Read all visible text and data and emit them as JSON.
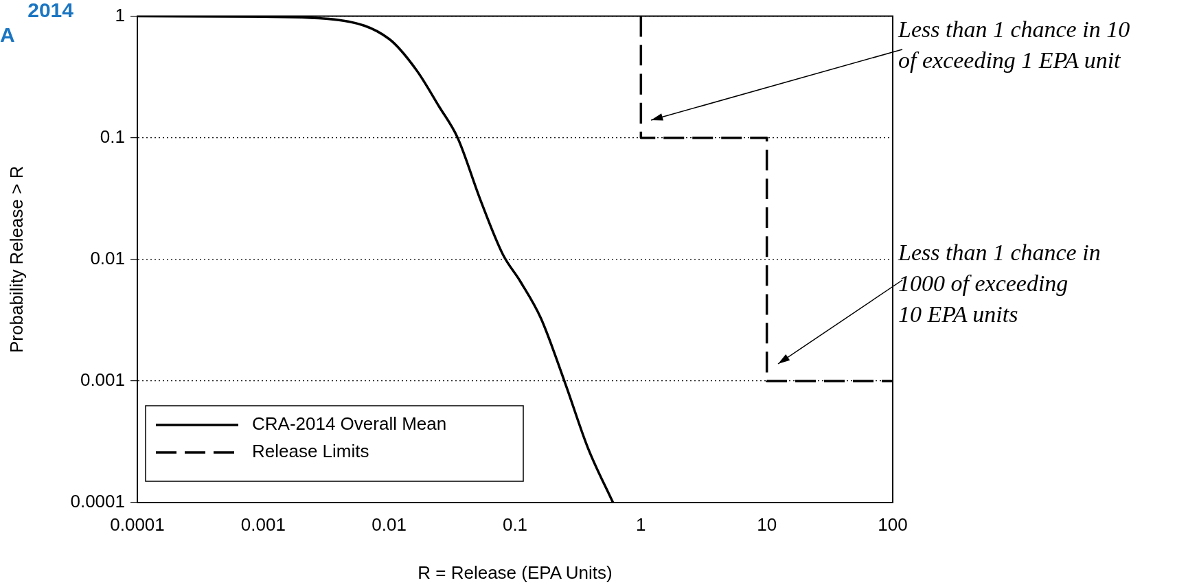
{
  "chart_data": {
    "type": "line",
    "title": "2014\nA",
    "xlabel": "R = Release (EPA Units)",
    "ylabel": "Probability Release > R",
    "log": "xy",
    "grid": "y",
    "legend": "bottom left",
    "xlim": [
      0.0001,
      100
    ],
    "xticks": [
      0.0001,
      0.001,
      0.01,
      0.1,
      1,
      10,
      100
    ],
    "ylim": [
      0.0001,
      1
    ],
    "yticks": [
      0.0001,
      0.001,
      0.01,
      0.1,
      1
    ],
    "series": [
      {
        "name": "CRA-2014 Overall Mean",
        "color": "#000000",
        "line_style": "solid",
        "x": [
          0.0001,
          0.001,
          0.004,
          0.01,
          0.0165,
          0.025,
          0.035,
          0.053,
          0.08,
          0.11,
          0.16,
          0.25,
          0.38,
          0.6
        ],
        "values": [
          1,
          0.99,
          0.93,
          0.65,
          0.36,
          0.18,
          0.1,
          0.031,
          0.011,
          0.0066,
          0.0033,
          0.00096,
          0.00028,
          0.0001
        ]
      },
      {
        "name": "Release Limits",
        "color": "#000000",
        "line_style": "dashed",
        "x": [
          1,
          1,
          10,
          10,
          100
        ],
        "values": [
          1,
          0.1,
          0.1,
          0.001,
          0.001
        ]
      }
    ],
    "annotations": [
      "Less than 1 chance in 10\nof exceeding 1 EPA unit",
      "Less than 1 chance in\n1000 of exceeding\n10 EPA units"
    ]
  }
}
